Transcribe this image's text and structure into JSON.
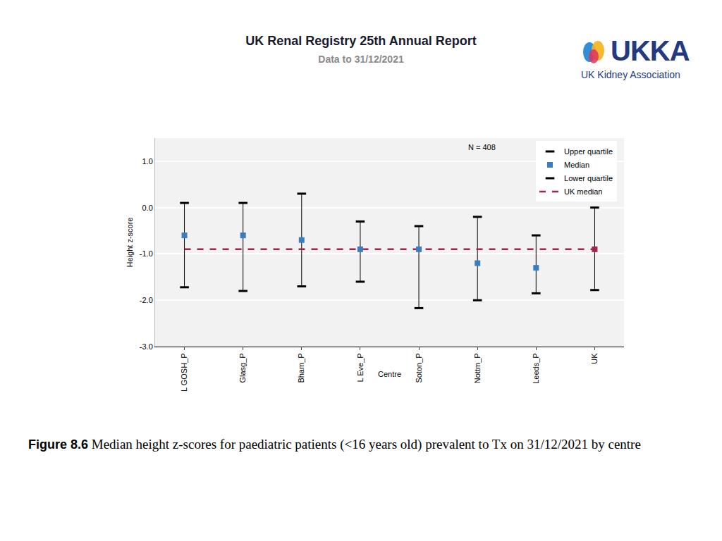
{
  "header": {
    "title": "UK Renal Registry 25th Annual Report",
    "subtitle": "Data to 31/12/2021"
  },
  "logo": {
    "text": "UKKA",
    "subtext": "UK Kidney Association"
  },
  "caption": {
    "label": "Figure 8.6",
    "text": "Median height z-scores for paediatric patients (<16 years old) prevalent to Tx on 31/12/2021 by centre"
  },
  "chart_data": {
    "type": "scatter",
    "x_label": "Centre",
    "y_label": "Height z-score",
    "categories": [
      "L GOSH_P",
      "Glasg_P",
      "Bham_P",
      "L Eve_P",
      "Soton_P",
      "Nottm_P",
      "Leeds_P",
      "UK"
    ],
    "series": [
      {
        "name": "Upper quartile",
        "color": "#000000",
        "marker": "line-ew",
        "values": [
          0.1,
          0.1,
          0.3,
          -0.3,
          -0.4,
          -0.2,
          -0.6,
          0.0
        ]
      },
      {
        "name": "Median",
        "marker": "square",
        "colors": [
          "#3a7ebf",
          "#3a7ebf",
          "#3a7ebf",
          "#3a7ebf",
          "#3a7ebf",
          "#3a7ebf",
          "#3a7ebf",
          "#a3234f"
        ],
        "values": [
          -0.6,
          -0.6,
          -0.7,
          -0.9,
          -0.9,
          -1.2,
          -1.3,
          -0.9
        ]
      },
      {
        "name": "Lower quartile",
        "color": "#000000",
        "marker": "line-ew",
        "values": [
          -1.72,
          -1.8,
          -1.7,
          -1.6,
          -2.17,
          -2.0,
          -1.85,
          -1.78
        ]
      },
      {
        "name": "UK median",
        "color": "#a3234f",
        "line_style": "dash",
        "values": [
          -0.9,
          -0.9,
          -0.9,
          -0.9,
          -0.9,
          -0.9,
          -0.9,
          -0.9
        ]
      }
    ],
    "ylim": [
      -3.0,
      1.5
    ],
    "yticks": [
      {
        "value": -3,
        "label": "-3.0"
      },
      {
        "value": -2,
        "label": "-2.0"
      },
      {
        "value": -1,
        "label": "-1.0"
      },
      {
        "value": 0,
        "label": "0.0"
      },
      {
        "value": 1,
        "label": "1.0"
      }
    ],
    "grid": true,
    "legend": "top right",
    "annotations": [
      {
        "text": "N = 408"
      }
    ]
  }
}
